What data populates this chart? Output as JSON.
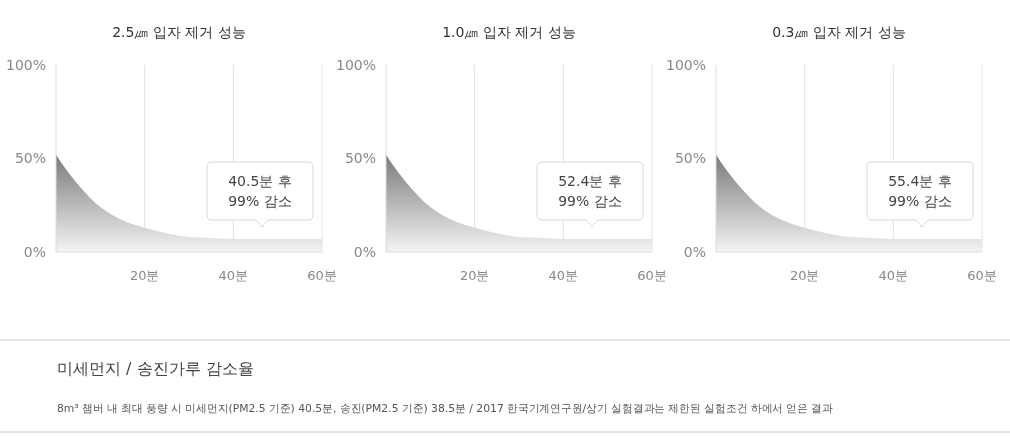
{
  "chart_data": [
    {
      "type": "area",
      "title": "2.5㎛ 입자 제거 성능",
      "x": [
        0,
        2,
        5,
        10,
        15,
        20,
        25,
        30,
        35,
        40,
        45,
        50,
        55,
        60
      ],
      "series": [
        {
          "color": "#7a7a7a",
          "values": [
            52,
            45,
            36,
            24,
            17,
            13,
            10,
            8,
            7.5,
            7,
            7,
            7,
            7,
            7
          ]
        }
      ],
      "xlim": [
        0,
        60
      ],
      "xticks": [
        {
          "value": 20,
          "label": "20분"
        },
        {
          "value": 40,
          "label": "40분"
        },
        {
          "value": 60,
          "label": "60분"
        }
      ],
      "ylim": [
        0,
        100
      ],
      "yticks": [
        {
          "value": 0,
          "label": "0%"
        },
        {
          "value": 50,
          "label": "50%"
        },
        {
          "value": 100,
          "label": "100%"
        }
      ],
      "grid": "x",
      "annotations": [
        "40.5분 후\n99% 감소"
      ]
    },
    {
      "type": "area",
      "title": "1.0㎛ 입자 제거 성능",
      "x": [
        0,
        2,
        5,
        10,
        15,
        20,
        25,
        30,
        35,
        40,
        45,
        50,
        55,
        60
      ],
      "series": [
        {
          "color": "#7a7a7a",
          "values": [
            52,
            45,
            36,
            24,
            17,
            13,
            10,
            8,
            7.5,
            7,
            7,
            7,
            7,
            7
          ]
        }
      ],
      "xlim": [
        0,
        60
      ],
      "xticks": [
        {
          "value": 20,
          "label": "20분"
        },
        {
          "value": 40,
          "label": "40분"
        },
        {
          "value": 60,
          "label": "60분"
        }
      ],
      "ylim": [
        0,
        100
      ],
      "yticks": [
        {
          "value": 0,
          "label": "0%"
        },
        {
          "value": 50,
          "label": "50%"
        },
        {
          "value": 100,
          "label": "100%"
        }
      ],
      "grid": "x",
      "annotations": [
        "52.4분 후\n99% 감소"
      ]
    },
    {
      "type": "area",
      "title": "0.3㎛ 입자 제거 성능",
      "x": [
        0,
        2,
        5,
        10,
        15,
        20,
        25,
        30,
        35,
        40,
        45,
        50,
        55,
        60
      ],
      "series": [
        {
          "color": "#7a7a7a",
          "values": [
            52,
            45,
            36,
            24,
            17,
            13,
            10,
            8,
            7.5,
            7,
            7,
            7,
            7,
            7
          ]
        }
      ],
      "xlim": [
        0,
        60
      ],
      "xticks": [
        {
          "value": 20,
          "label": "20분"
        },
        {
          "value": 40,
          "label": "40분"
        },
        {
          "value": 60,
          "label": "60분"
        }
      ],
      "ylim": [
        0,
        100
      ],
      "yticks": [
        {
          "value": 0,
          "label": "0%"
        },
        {
          "value": 50,
          "label": "50%"
        },
        {
          "value": 100,
          "label": "100%"
        }
      ],
      "grid": "x",
      "annotations": [
        "55.4분 후\n99% 감소"
      ]
    },
    {
      "type": "other",
      "title": "미세먼지 / 송진가루 감소율",
      "annotations": [
        "8m³ 챔버 내 최대 풍량 시 미세먼지(PM2.5 기준) 40.5분, 송진(PM2.5 기준) 38.5분 / 2017 한국기계연구원/상기 실험결과는 제한된 실험조건 하에서 얻은 결과"
      ]
    }
  ]
}
